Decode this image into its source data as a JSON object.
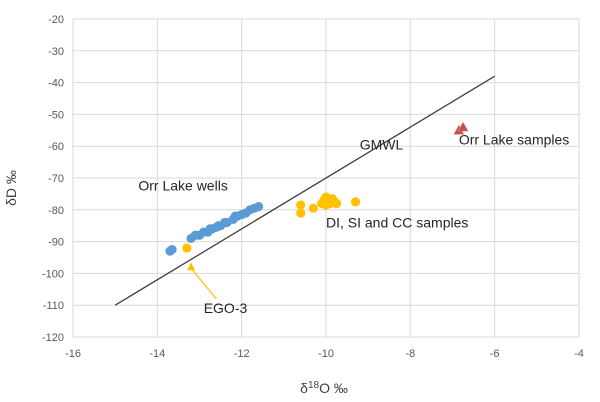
{
  "chart_data": {
    "type": "scatter",
    "title": "",
    "xlabel": "δ18O ‰",
    "ylabel": "δD ‰",
    "xlim": [
      -16,
      -4
    ],
    "ylim": [
      -120,
      -20
    ],
    "x_ticks": [
      -16,
      -14,
      -12,
      -10,
      -8,
      -6,
      -4
    ],
    "y_ticks": [
      -120,
      -110,
      -100,
      -90,
      -80,
      -70,
      -60,
      -50,
      -40,
      -30,
      -20
    ],
    "grid": true,
    "legend": "none",
    "colors": {
      "wells": "#5b9bd5",
      "dsc": "#ffc000",
      "lake": "#c0504d",
      "gmwl": "#404040",
      "grid": "#d9d9d9",
      "ego3": "#ffc000"
    },
    "gmwl_line": {
      "x": [
        -15,
        -6
      ],
      "y": [
        -110,
        -38
      ]
    },
    "series": [
      {
        "key": "wells",
        "marker": "circle",
        "x": [
          -13.7,
          -13.65,
          -13.2,
          -13.1,
          -13.0,
          -12.9,
          -12.8,
          -12.75,
          -12.7,
          -12.6,
          -12.55,
          -12.5,
          -12.4,
          -12.35,
          -12.2,
          -12.15,
          -12.1,
          -12.0,
          -11.9,
          -11.8,
          -11.7,
          -11.6
        ],
        "y": [
          -93,
          -92.5,
          -89,
          -88,
          -88,
          -87,
          -87,
          -86,
          -86,
          -85.5,
          -85,
          -85,
          -84,
          -84,
          -83,
          -82,
          -82,
          -81.5,
          -81,
          -80,
          -79.5,
          -79
        ]
      },
      {
        "key": "dsc",
        "marker": "circle",
        "x": [
          -13.3,
          -10.6,
          -10.6,
          -10.3,
          -10.1,
          -10.05,
          -10.0,
          -10.0,
          -9.95,
          -9.9,
          -9.85,
          -9.8,
          -9.75,
          -9.3
        ],
        "y": [
          -92,
          -78.5,
          -81,
          -79.5,
          -78,
          -77,
          -76,
          -78.5,
          -77,
          -78,
          -76.5,
          -77.5,
          -78,
          -77.5
        ]
      },
      {
        "key": "lake",
        "marker": "triangle",
        "x": [
          -6.85,
          -6.75
        ],
        "y": [
          -55,
          -54
        ]
      }
    ],
    "annotations": [
      {
        "key": "gmwl",
        "text": "GMWL",
        "x": -9.2,
        "y": -61
      },
      {
        "key": "lake",
        "text": "Orr Lake samples",
        "x": -6.85,
        "y": -59.5
      },
      {
        "key": "wells",
        "text": "Orr Lake wells",
        "x": -14.45,
        "y": -74
      },
      {
        "key": "dsc",
        "text": "DI, SI and CC samples",
        "x": -10.0,
        "y": -85.5
      },
      {
        "key": "ego3",
        "text": "EGO-3",
        "x": -12.9,
        "y": -112.5
      }
    ],
    "arrow": {
      "from": [
        -12.6,
        -108
      ],
      "to": [
        -13.2,
        -96.5
      ]
    }
  }
}
